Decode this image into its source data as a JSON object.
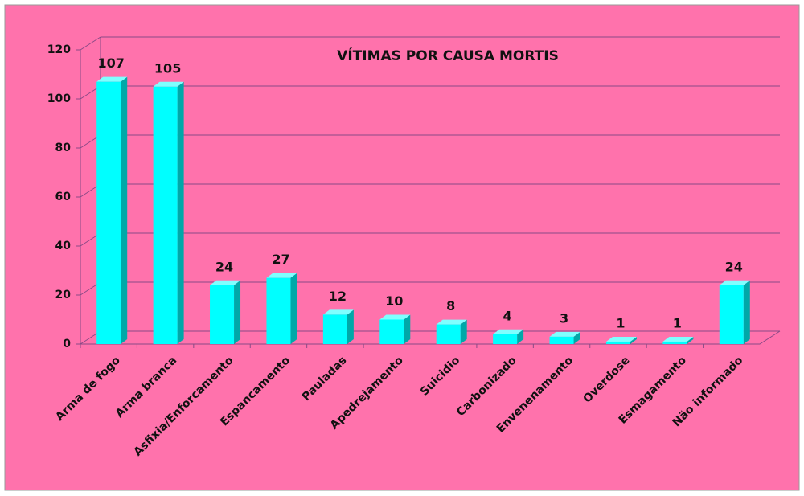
{
  "chart_data": {
    "type": "bar3d",
    "title": "VÍTIMAS POR CAUSA MORTIS",
    "categories": [
      "Arma de fogo",
      "Arma branca",
      "Asfixia/Enforcamento",
      "Espancamento",
      "Pauladas",
      "Apedrejamento",
      "Suicidio",
      "Carbonizado",
      "Envenenamento",
      "Overdose",
      "Esmagamento",
      "Não informado"
    ],
    "values": [
      107,
      105,
      24,
      27,
      12,
      10,
      8,
      4,
      3,
      1,
      1,
      24
    ],
    "color": "#00ffff",
    "ylim": [
      0,
      120
    ],
    "yticks": [
      0,
      20,
      40,
      60,
      80,
      100,
      120
    ],
    "grid": true
  }
}
